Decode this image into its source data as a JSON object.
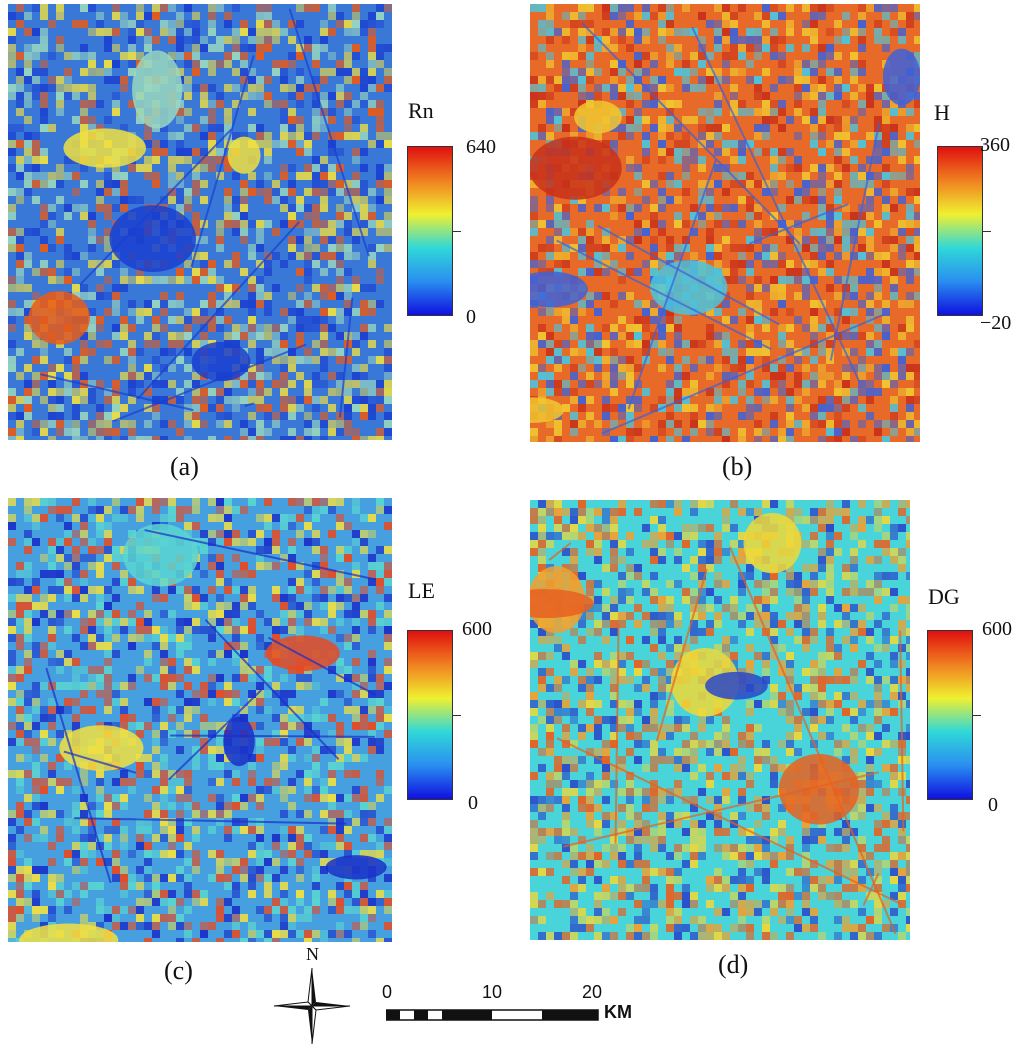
{
  "panels": [
    {
      "caption": "(a)",
      "variable": "Rn",
      "max_label": "640",
      "min_label": "0",
      "base_color": "#3a78d8",
      "accents": [
        "#1a3fd0",
        "#f0e040",
        "#e85a18",
        "#9ad8c0"
      ]
    },
    {
      "caption": "(b)",
      "variable": "H",
      "max_label": "360",
      "min_label": "−20",
      "base_color": "#e86a28",
      "accents": [
        "#3d62d8",
        "#f0c830",
        "#c8301a",
        "#49c6e0"
      ]
    },
    {
      "caption": "(c)",
      "variable": "LE",
      "max_label": "600",
      "min_label": "0",
      "base_color": "#46a0e0",
      "accents": [
        "#1a2fc8",
        "#f2e040",
        "#e84a20",
        "#5ad6d0"
      ]
    },
    {
      "caption": "(d)",
      "variable": "DG",
      "max_label": "600",
      "min_label": "0",
      "base_color": "#48d4d8",
      "accents": [
        "#e86020",
        "#f0d838",
        "#2a48c8",
        "#f0a030"
      ]
    }
  ],
  "colormap": [
    "#1010e0",
    "#2a8ef0",
    "#30d8d8",
    "#f0f030",
    "#f08020",
    "#e01010"
  ],
  "north_arrow": {
    "label": "N"
  },
  "scale_bar": {
    "ticks": [
      "0",
      "10",
      "20"
    ],
    "unit": "KM"
  }
}
